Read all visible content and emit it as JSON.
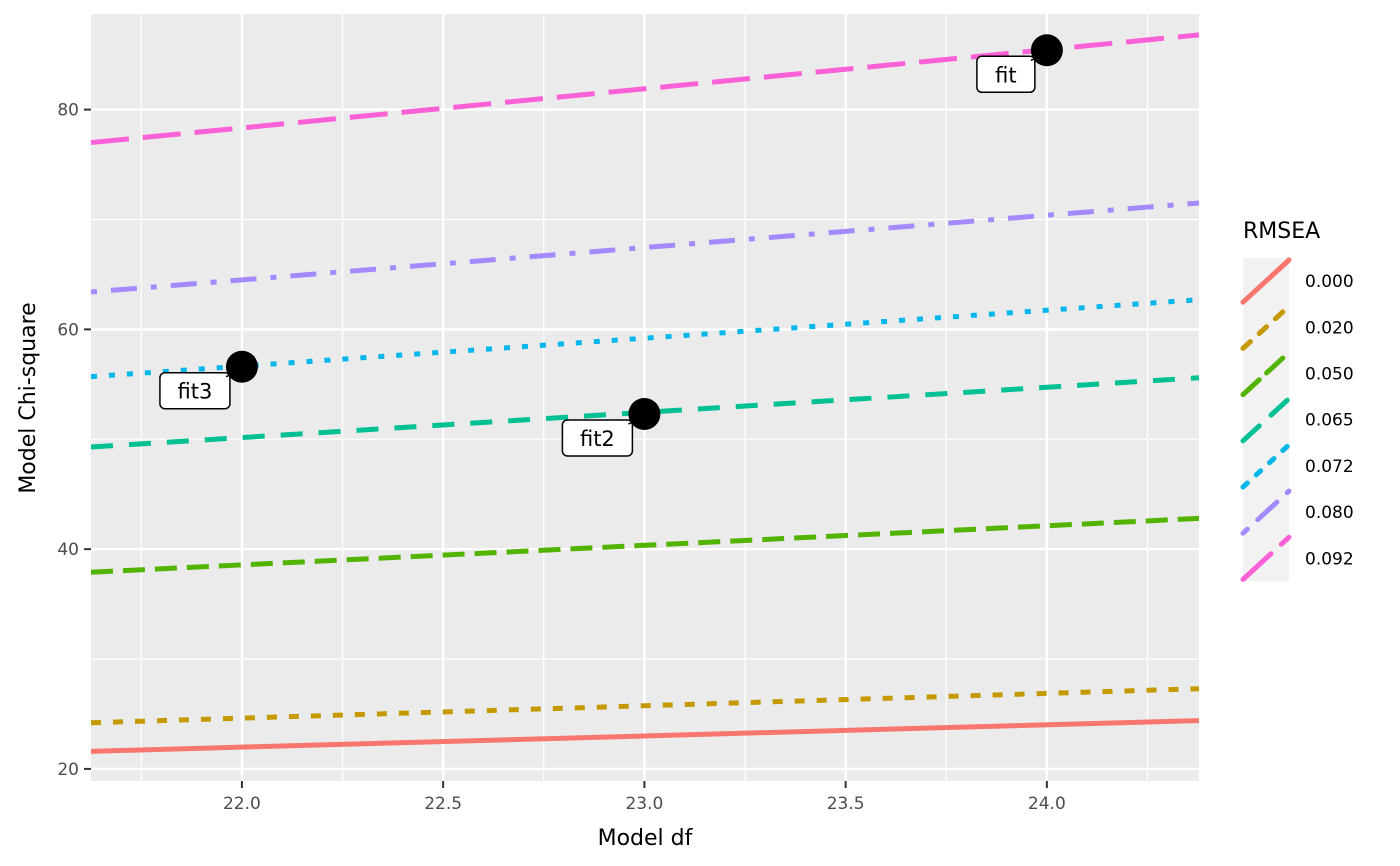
{
  "chart_data": {
    "type": "line",
    "title": "",
    "xlabel": "Model df",
    "ylabel": "Model Chi-square",
    "xlim": [
      21.625,
      24.378
    ],
    "ylim": [
      18.9,
      88.7
    ],
    "x_ticks": [
      22.0,
      22.5,
      23.0,
      23.5,
      24.0
    ],
    "x_tick_labels": [
      "22.0",
      "22.5",
      "23.0",
      "23.5",
      "24.0"
    ],
    "y_ticks": [
      20,
      40,
      60,
      80
    ],
    "y_tick_labels": [
      "20",
      "40",
      "60",
      "80"
    ],
    "grid": true,
    "legend": {
      "title": "RMSEA",
      "position": "right"
    },
    "series": [
      {
        "name": "0.000",
        "color": "#F8766D",
        "dash": "solid",
        "x": [
          21.625,
          24.378
        ],
        "y": [
          21.6,
          24.4
        ]
      },
      {
        "name": "0.020",
        "color": "#C49A00",
        "dash": "dashed",
        "x": [
          21.625,
          24.378
        ],
        "y": [
          24.2,
          27.3
        ]
      },
      {
        "name": "0.050",
        "color": "#53B400",
        "dash": "longdash",
        "x": [
          21.625,
          24.378
        ],
        "y": [
          37.9,
          42.8
        ]
      },
      {
        "name": "0.065",
        "color": "#00C094",
        "dash": "longdash2",
        "x": [
          21.625,
          24.378
        ],
        "y": [
          49.3,
          55.6
        ]
      },
      {
        "name": "0.072",
        "color": "#00B6EB",
        "dash": "dotted",
        "x": [
          21.625,
          24.378
        ],
        "y": [
          55.7,
          62.7
        ]
      },
      {
        "name": "0.080",
        "color": "#A58AFF",
        "dash": "dotdash",
        "x": [
          21.625,
          24.378
        ],
        "y": [
          63.4,
          71.5
        ]
      },
      {
        "name": "0.092",
        "color": "#FB61D7",
        "dash": "twodash",
        "x": [
          21.625,
          24.378
        ],
        "y": [
          77.0,
          86.8
        ]
      }
    ],
    "points": [
      {
        "label": "fit",
        "x": 24.0,
        "y": 85.4
      },
      {
        "label": "fit2",
        "x": 23.0,
        "y": 52.3
      },
      {
        "label": "fit3",
        "x": 22.0,
        "y": 56.6
      }
    ]
  },
  "colors": {
    "panel_background": "#EBEBEB",
    "grid_major": "#FFFFFF",
    "legend_key_background": "#F2F2F2",
    "point": "#000000",
    "tick_text": "#4D4D4D"
  }
}
